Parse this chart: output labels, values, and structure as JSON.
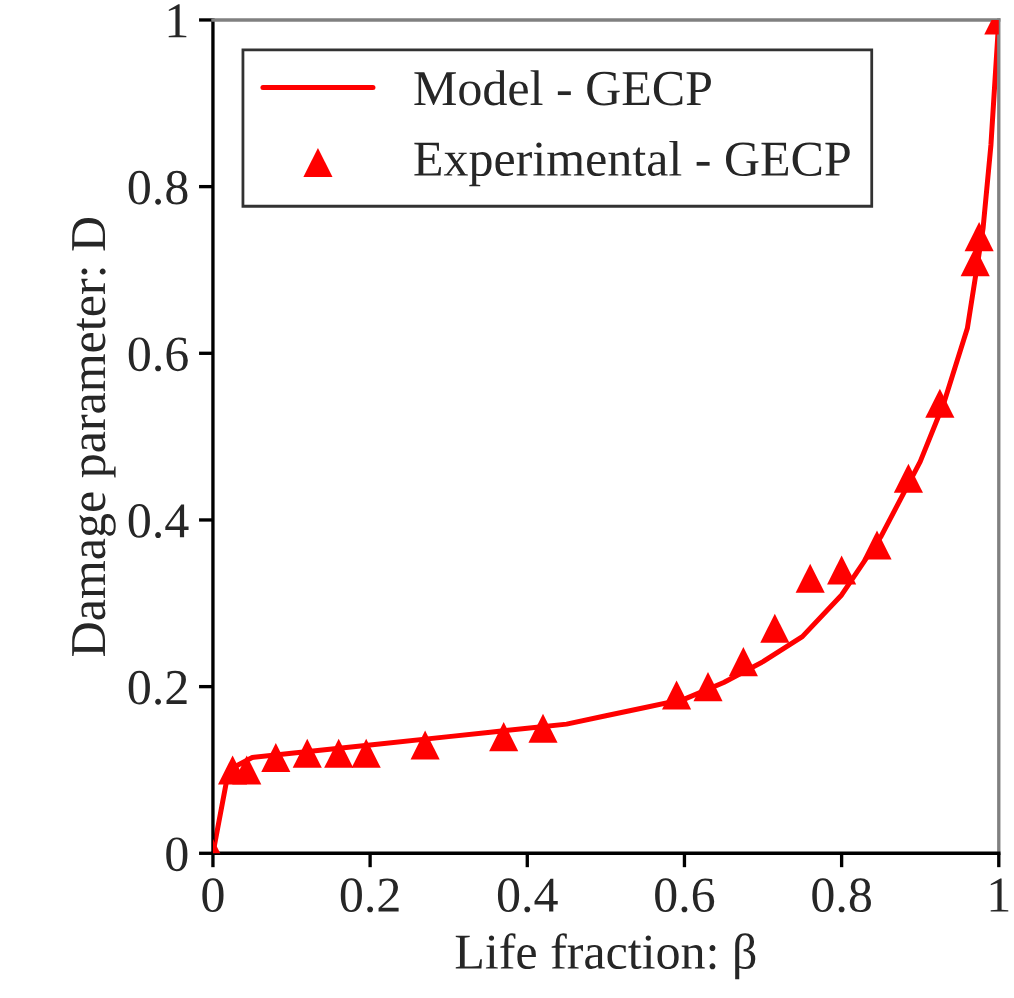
{
  "chart_data": {
    "type": "line",
    "xlabel": "Life fraction: β",
    "ylabel": "Damage parameter: D",
    "xlim": [
      0,
      1
    ],
    "ylim": [
      0,
      1
    ],
    "xticks": [
      0,
      0.2,
      0.4,
      0.6,
      0.8,
      1
    ],
    "yticks": [
      0,
      0.2,
      0.4,
      0.6,
      0.8,
      1
    ],
    "grid": false,
    "legend": "top left",
    "series": [
      {
        "name": "Model - GECP",
        "color": "#ff0000",
        "marker": "none",
        "line_style": "solid",
        "x": [
          0,
          0.02,
          0.05,
          0.1,
          0.2,
          0.3,
          0.35,
          0.4,
          0.45,
          0.5,
          0.55,
          0.6,
          0.65,
          0.7,
          0.75,
          0.8,
          0.85,
          0.9,
          0.93,
          0.96,
          0.98,
          0.99,
          1.0
        ],
        "values": [
          0,
          0.1,
          0.115,
          0.12,
          0.13,
          0.14,
          0.145,
          0.15,
          0.155,
          0.165,
          0.175,
          0.185,
          0.205,
          0.23,
          0.26,
          0.31,
          0.38,
          0.47,
          0.54,
          0.63,
          0.75,
          0.85,
          1.0
        ]
      },
      {
        "name": "Experimental - GECP",
        "type": "scatter",
        "color": "#ff0000",
        "marker": "triangle",
        "x": [
          0,
          0.025,
          0.043,
          0.08,
          0.12,
          0.16,
          0.195,
          0.27,
          0.37,
          0.42,
          0.59,
          0.63,
          0.675,
          0.715,
          0.76,
          0.8,
          0.845,
          0.885,
          0.925,
          0.97,
          0.975,
          1.0
        ],
        "values": [
          0,
          0.1,
          0.1,
          0.115,
          0.12,
          0.12,
          0.12,
          0.13,
          0.14,
          0.15,
          0.19,
          0.2,
          0.23,
          0.27,
          0.33,
          0.34,
          0.37,
          0.45,
          0.54,
          0.71,
          0.74,
          1.0
        ]
      }
    ]
  }
}
